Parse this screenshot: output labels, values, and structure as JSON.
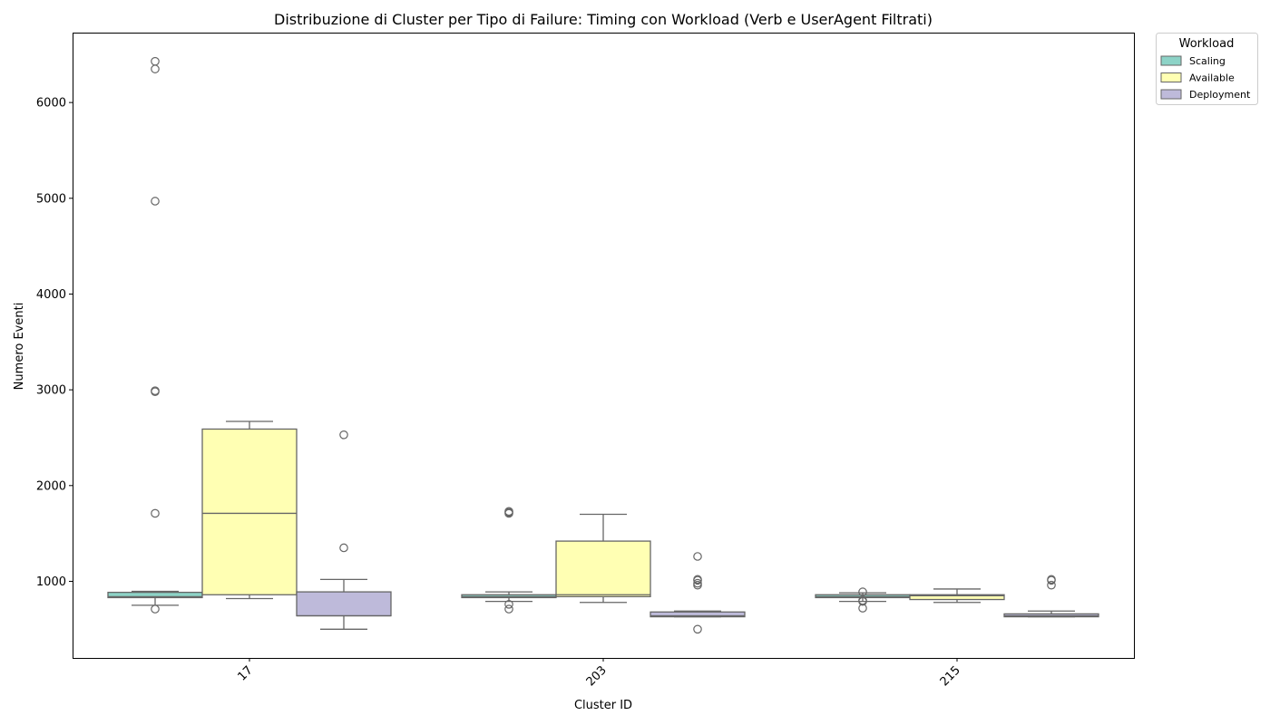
{
  "chart_data": {
    "type": "box",
    "title": "Distribuzione di Cluster per Tipo di Failure: Timing con Workload (Verb e UserAgent Filtrati)",
    "xlabel": "Cluster ID",
    "ylabel": "Numero Eventi",
    "categories": [
      "17",
      "203",
      "215"
    ],
    "y_ticks": [
      1000,
      2000,
      3000,
      4000,
      5000,
      6000
    ],
    "ylim": [
      200,
      6730
    ],
    "legend": {
      "title": "Workload",
      "position": "upper-right-outside"
    },
    "series": [
      {
        "name": "Scaling",
        "color": "#8dd3c7",
        "boxes": [
          {
            "whisker_low": 750,
            "q1": 830,
            "median": 840,
            "q3": 885,
            "whisker_high": 895,
            "outliers": [
              710,
              1710,
              2980,
              2990,
              4970,
              6350,
              6430
            ]
          },
          {
            "whisker_low": 790,
            "q1": 830,
            "median": 840,
            "q3": 860,
            "whisker_high": 890,
            "outliers": [
              710,
              760,
              1710,
              1720,
              1730
            ]
          },
          {
            "whisker_low": 790,
            "q1": 830,
            "median": 840,
            "q3": 860,
            "whisker_high": 880,
            "outliers": [
              720,
              790,
              800,
              890
            ]
          }
        ]
      },
      {
        "name": "Available",
        "color": "#ffffb3",
        "boxes": [
          {
            "whisker_low": 820,
            "q1": 860,
            "median": 1710,
            "q3": 2590,
            "whisker_high": 2670,
            "outliers": []
          },
          {
            "whisker_low": 780,
            "q1": 840,
            "median": 860,
            "q3": 1420,
            "whisker_high": 1700,
            "outliers": []
          },
          {
            "whisker_low": 780,
            "q1": 810,
            "median": 850,
            "q3": 860,
            "whisker_high": 920,
            "outliers": []
          }
        ]
      },
      {
        "name": "Deployment",
        "color": "#bebada",
        "boxes": [
          {
            "whisker_low": 500,
            "q1": 640,
            "median": 640,
            "q3": 890,
            "whisker_high": 1020,
            "outliers": [
              1350,
              2530
            ]
          },
          {
            "whisker_low": 630,
            "q1": 630,
            "median": 640,
            "q3": 680,
            "whisker_high": 690,
            "outliers": [
              500,
              960,
              980,
              1010,
              1020,
              1260
            ]
          },
          {
            "whisker_low": 630,
            "q1": 630,
            "median": 640,
            "q3": 660,
            "whisker_high": 690,
            "outliers": [
              960,
              1010,
              1020
            ]
          }
        ]
      }
    ]
  }
}
